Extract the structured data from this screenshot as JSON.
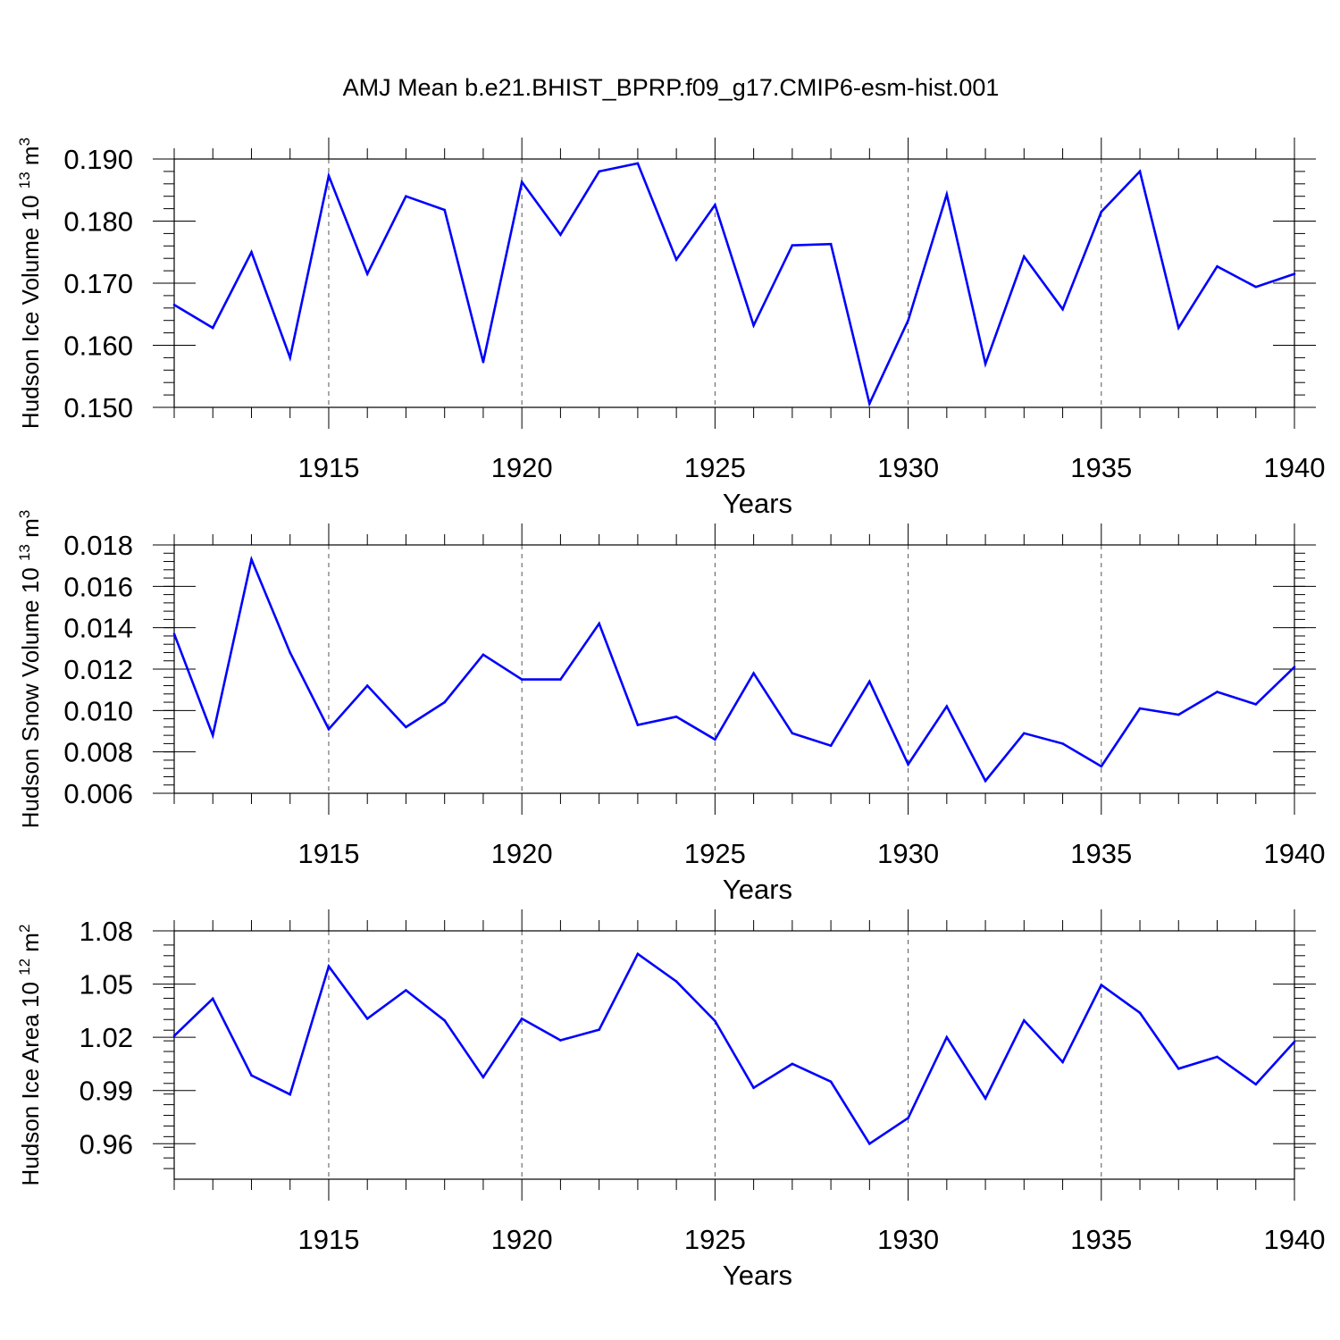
{
  "title": "AMJ Mean b.e21.BHIST_BPRP.f09_g17.CMIP6-esm-hist.001",
  "chart_data": [
    {
      "type": "line",
      "title": "",
      "xlabel": "Years",
      "ylabel": "Hudson Ice Volume 10",
      "ylabel_exponent": "13",
      "ylabel_unit": "m",
      "ylabel_unit_exponent": "3",
      "series": [
        {
          "name": "Hudson Ice Volume",
          "color": "#0000ff",
          "x": [
            1911,
            1912,
            1913,
            1914,
            1915,
            1916,
            1917,
            1918,
            1919,
            1920,
            1921,
            1922,
            1923,
            1924,
            1925,
            1926,
            1927,
            1928,
            1929,
            1930,
            1931,
            1932,
            1933,
            1934,
            1935,
            1936,
            1937,
            1938,
            1939,
            1940
          ],
          "values": [
            0.1665,
            0.1628,
            0.175,
            0.158,
            0.1873,
            0.1715,
            0.184,
            0.1818,
            0.1573,
            0.1863,
            0.1778,
            0.188,
            0.1893,
            0.1738,
            0.1826,
            0.1632,
            0.1761,
            0.1763,
            0.1506,
            0.164,
            0.1843,
            0.157,
            0.1743,
            0.1658,
            0.1815,
            0.188,
            0.1628,
            0.1727,
            0.1694,
            0.1715
          ]
        }
      ],
      "xlim": [
        1911,
        1940
      ],
      "ylim": [
        0.15,
        0.19
      ],
      "x_ticks": [
        1915,
        1920,
        1925,
        1930,
        1935,
        1940
      ],
      "x_tick_labels": [
        "1915",
        "1920",
        "1925",
        "1930",
        "1935",
        "1940"
      ],
      "y_ticks": [
        0.15,
        0.16,
        0.17,
        0.18,
        0.19
      ],
      "y_tick_labels": [
        "0.150",
        "0.160",
        "0.170",
        "0.180",
        "0.190"
      ],
      "y_minor_step": 0.002,
      "grid": "x-major-dashed"
    },
    {
      "type": "line",
      "title": "",
      "xlabel": "Years",
      "ylabel": "Hudson Snow Volume 10",
      "ylabel_exponent": "13",
      "ylabel_unit": "m",
      "ylabel_unit_exponent": "3",
      "series": [
        {
          "name": "Hudson Snow Volume",
          "color": "#0000ff",
          "x": [
            1911,
            1912,
            1913,
            1914,
            1915,
            1916,
            1917,
            1918,
            1919,
            1920,
            1921,
            1922,
            1923,
            1924,
            1925,
            1926,
            1927,
            1928,
            1929,
            1930,
            1931,
            1932,
            1933,
            1934,
            1935,
            1936,
            1937,
            1938,
            1939,
            1940
          ],
          "values": [
            0.0137,
            0.0088,
            0.0173,
            0.0128,
            0.0091,
            0.0112,
            0.0092,
            0.0104,
            0.0127,
            0.0115,
            0.0115,
            0.0142,
            0.0093,
            0.0097,
            0.0086,
            0.0118,
            0.0089,
            0.0083,
            0.0114,
            0.0074,
            0.0102,
            0.0066,
            0.0089,
            0.0084,
            0.0073,
            0.0101,
            0.0098,
            0.0109,
            0.0103,
            0.0121
          ]
        }
      ],
      "xlim": [
        1911,
        1940
      ],
      "ylim": [
        0.006,
        0.018
      ],
      "x_ticks": [
        1915,
        1920,
        1925,
        1930,
        1935,
        1940
      ],
      "x_tick_labels": [
        "1915",
        "1920",
        "1925",
        "1930",
        "1935",
        "1940"
      ],
      "y_ticks": [
        0.006,
        0.008,
        0.01,
        0.012,
        0.014,
        0.016,
        0.018
      ],
      "y_tick_labels": [
        "0.006",
        "0.008",
        "0.010",
        "0.012",
        "0.014",
        "0.016",
        "0.018"
      ],
      "y_minor_step": 0.0004,
      "grid": "x-major-dashed"
    },
    {
      "type": "line",
      "title": "",
      "xlabel": "Years",
      "ylabel": "Hudson Ice Area 10",
      "ylabel_exponent": "12",
      "ylabel_unit": "m",
      "ylabel_unit_exponent": "2",
      "series": [
        {
          "name": "Hudson Ice Area",
          "color": "#0000ff",
          "x": [
            1911,
            1912,
            1913,
            1914,
            1915,
            1916,
            1917,
            1918,
            1919,
            1920,
            1921,
            1922,
            1923,
            1924,
            1925,
            1926,
            1927,
            1928,
            1929,
            1930,
            1931,
            1932,
            1933,
            1934,
            1935,
            1936,
            1937,
            1938,
            1939,
            1940
          ],
          "values": [
            1.0208,
            1.0418,
            0.9985,
            0.9878,
            1.06,
            1.0305,
            1.0465,
            1.0295,
            0.9975,
            1.0305,
            1.0183,
            1.0243,
            1.067,
            1.0515,
            1.0292,
            0.9915,
            1.005,
            0.995,
            0.96,
            0.9745,
            1.02,
            0.9855,
            1.0295,
            1.006,
            1.0495,
            1.0338,
            1.0023,
            1.009,
            0.9935,
            1.0175
          ]
        }
      ],
      "xlim": [
        1911,
        1940
      ],
      "ylim": [
        0.94,
        1.08
      ],
      "x_ticks": [
        1915,
        1920,
        1925,
        1930,
        1935,
        1940
      ],
      "x_tick_labels": [
        "1915",
        "1920",
        "1925",
        "1930",
        "1935",
        "1940"
      ],
      "y_ticks": [
        0.96,
        0.99,
        1.02,
        1.05,
        1.08
      ],
      "y_tick_labels": [
        "0.96",
        "0.99",
        "1.02",
        "1.05",
        "1.08"
      ],
      "y_minor_step": 0.006,
      "grid": "x-major-dashed"
    }
  ]
}
